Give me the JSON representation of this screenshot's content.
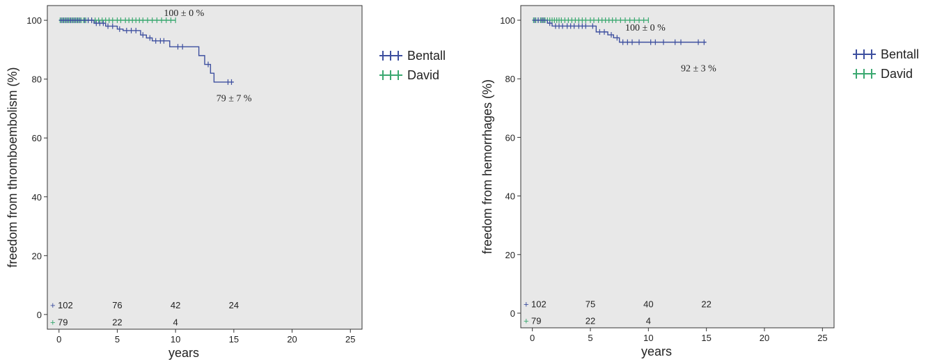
{
  "colors": {
    "bentall": "#3d4f9f",
    "david": "#3aa870",
    "plot_bg": "#e8e8e8",
    "axis": "#333333"
  },
  "chart_data": [
    {
      "type": "line",
      "title": "",
      "xlabel": "years",
      "ylabel": "freedom from thromboembolism (%)",
      "xlim": [
        -1,
        26
      ],
      "ylim": [
        -5,
        105
      ],
      "xticks": [
        0,
        5,
        10,
        15,
        20,
        25
      ],
      "yticks": [
        0,
        20,
        40,
        60,
        80,
        100
      ],
      "grid": false,
      "legend_position": "right",
      "series": [
        {
          "name": "Bentall",
          "color_key": "bentall",
          "x": [
            0,
            2.0,
            3.0,
            4.0,
            5.0,
            5.5,
            7.0,
            7.5,
            8.0,
            9.0,
            9.5,
            12.0,
            12.5,
            13.0,
            13.3,
            15.0
          ],
          "y": [
            100,
            100,
            99,
            98,
            97,
            96.5,
            95,
            94,
            93,
            93,
            91,
            88,
            85,
            82,
            79,
            79
          ],
          "censor_x": [
            0.2,
            0.4,
            0.6,
            0.8,
            1.0,
            1.2,
            1.4,
            1.6,
            1.8,
            2.2,
            2.5,
            2.8,
            3.2,
            3.5,
            3.8,
            4.2,
            4.6,
            5.2,
            5.8,
            6.2,
            6.6,
            7.2,
            7.8,
            8.3,
            8.7,
            9.0,
            10.2,
            10.6,
            12.8,
            14.5,
            14.8
          ]
        },
        {
          "name": "David",
          "color_key": "david",
          "x": [
            0,
            10.0
          ],
          "y": [
            100,
            100
          ],
          "censor_x": [
            0.1,
            0.3,
            0.5,
            0.7,
            0.9,
            1.1,
            1.3,
            1.5,
            1.7,
            1.9,
            2.1,
            2.3,
            2.5,
            2.8,
            3.1,
            3.4,
            3.7,
            4.0,
            4.3,
            4.6,
            5.0,
            5.3,
            5.7,
            6.0,
            6.3,
            6.6,
            6.9,
            7.2,
            7.6,
            8.0,
            8.4,
            8.8,
            9.2,
            9.6,
            10.0
          ]
        }
      ],
      "annotations": [
        {
          "text": "100 ± 0 %",
          "x": 9.0,
          "y": 101.5
        },
        {
          "text": "79 ± 7 %",
          "x": 13.5,
          "y": 72.5
        }
      ],
      "at_risk": {
        "times": [
          0,
          5,
          10,
          15
        ],
        "rows": [
          {
            "series": "Bentall",
            "symbol": "+",
            "values": [
              "102",
              "76",
              "42",
              "24"
            ]
          },
          {
            "series": "David",
            "symbol": "+",
            "values": [
              "79",
              "22",
              "4",
              ""
            ]
          }
        ]
      }
    },
    {
      "type": "line",
      "title": "",
      "xlabel": "years",
      "ylabel": "freedom from hemorrhages (%)",
      "xlim": [
        -1,
        26
      ],
      "ylim": [
        -5,
        105
      ],
      "xticks": [
        0,
        5,
        10,
        15,
        20,
        25
      ],
      "yticks": [
        0,
        20,
        40,
        60,
        80,
        100
      ],
      "grid": false,
      "legend_position": "right",
      "series": [
        {
          "name": "Bentall",
          "color_key": "bentall",
          "x": [
            0,
            1.3,
            1.7,
            5.0,
            5.5,
            6.5,
            7.0,
            7.5,
            15.0
          ],
          "y": [
            100,
            99,
            98,
            98,
            96,
            95,
            94,
            92.5,
            92.5
          ],
          "censor_x": [
            0.2,
            0.5,
            0.8,
            1.0,
            1.5,
            2.0,
            2.3,
            2.6,
            3.0,
            3.3,
            3.6,
            4.0,
            4.3,
            4.6,
            5.2,
            5.8,
            6.2,
            6.8,
            7.3,
            7.8,
            8.2,
            8.6,
            9.2,
            10.2,
            10.6,
            11.3,
            12.3,
            12.8,
            14.3,
            14.8
          ]
        },
        {
          "name": "David",
          "color_key": "david",
          "x": [
            0,
            10.0
          ],
          "y": [
            100,
            100
          ],
          "censor_x": [
            0.1,
            0.3,
            0.5,
            0.7,
            0.9,
            1.1,
            1.3,
            1.5,
            1.7,
            1.9,
            2.1,
            2.3,
            2.5,
            2.8,
            3.1,
            3.4,
            3.7,
            4.0,
            4.3,
            4.6,
            5.0,
            5.3,
            5.7,
            6.0,
            6.3,
            6.6,
            6.9,
            7.2,
            7.6,
            8.0,
            8.4,
            8.8,
            9.2,
            9.6,
            10.0
          ]
        }
      ],
      "annotations": [
        {
          "text": "100 ± 0 %",
          "x": 8.0,
          "y": 96.5
        },
        {
          "text": "92 ± 3 %",
          "x": 12.8,
          "y": 82.5
        }
      ],
      "at_risk": {
        "times": [
          0,
          5,
          10,
          15
        ],
        "rows": [
          {
            "series": "Bentall",
            "symbol": "+",
            "values": [
              "102",
              "75",
              "40",
              "22"
            ]
          },
          {
            "series": "David",
            "symbol": "+",
            "values": [
              "79",
              "22",
              "4",
              ""
            ]
          }
        ]
      }
    }
  ]
}
